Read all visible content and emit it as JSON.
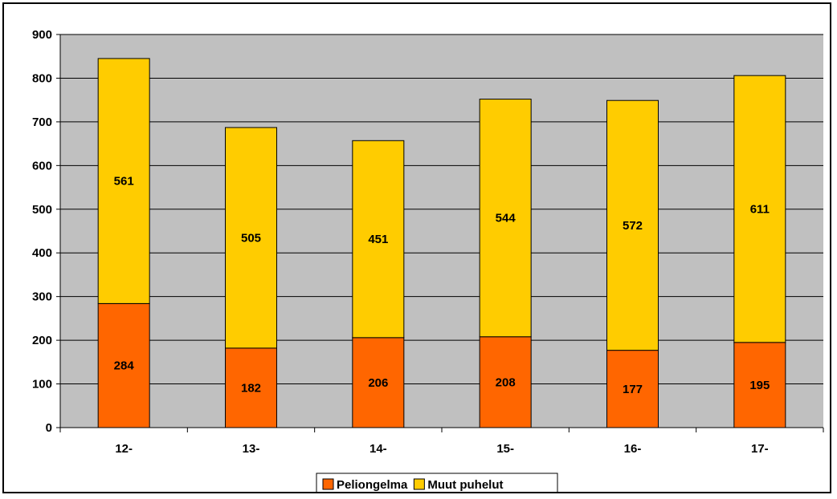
{
  "chart_data": {
    "type": "bar",
    "stacked": true,
    "categories": [
      "12-",
      "13-",
      "14-",
      "15-",
      "16-",
      "17-"
    ],
    "series": [
      {
        "name": "Peliongelma",
        "values": [
          284,
          182,
          206,
          208,
          177,
          195
        ],
        "color": "#ff6600"
      },
      {
        "name": "Muut puhelut",
        "values": [
          561,
          505,
          451,
          544,
          572,
          611
        ],
        "color": "#ffcc00"
      }
    ],
    "title": "",
    "xlabel": "",
    "ylabel": "",
    "ylim": [
      0,
      900
    ],
    "yticks": [
      0,
      100,
      200,
      300,
      400,
      500,
      600,
      700,
      800,
      900
    ],
    "grid": true,
    "plot_background": "#c0c0c0",
    "legend_position": "bottom"
  }
}
